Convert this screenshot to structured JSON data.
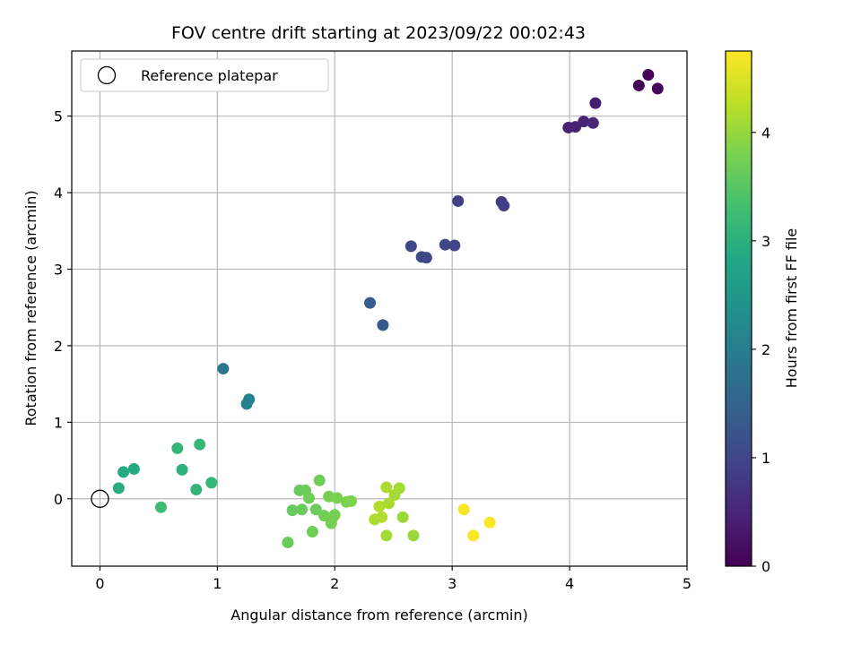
{
  "chart_data": {
    "type": "scatter",
    "title": "FOV centre drift starting at 2023/09/22 00:02:43",
    "xlabel": "Angular distance from reference (arcmin)",
    "ylabel": "Rotation from reference (arcmin)",
    "xlim": [
      -0.24,
      5.0
    ],
    "ylim": [
      -0.88,
      5.85
    ],
    "xticks": [
      0,
      1,
      2,
      3,
      4,
      5
    ],
    "yticks": [
      0,
      1,
      2,
      3,
      4,
      5
    ],
    "grid": true,
    "legend_position": "top-left",
    "legend": [
      "Reference platepar"
    ],
    "reference_point": {
      "x": 0,
      "y": 0
    },
    "colorbar": {
      "label": "Hours from first FF file",
      "colormap": "viridis",
      "range": [
        0,
        4.75
      ],
      "ticks": [
        0,
        1,
        2,
        3,
        4
      ]
    },
    "points": [
      {
        "x": 4.59,
        "y": 5.4,
        "c": 0.02
      },
      {
        "x": 4.67,
        "y": 5.54,
        "c": 0.05
      },
      {
        "x": 4.75,
        "y": 5.36,
        "c": 0.08
      },
      {
        "x": 4.22,
        "y": 5.17,
        "c": 0.4
      },
      {
        "x": 3.99,
        "y": 4.85,
        "c": 0.45
      },
      {
        "x": 4.05,
        "y": 4.86,
        "c": 0.48
      },
      {
        "x": 4.12,
        "y": 4.93,
        "c": 0.5
      },
      {
        "x": 4.2,
        "y": 4.91,
        "c": 0.52
      },
      {
        "x": 3.05,
        "y": 3.89,
        "c": 0.88
      },
      {
        "x": 3.42,
        "y": 3.88,
        "c": 0.85
      },
      {
        "x": 3.44,
        "y": 3.83,
        "c": 0.87
      },
      {
        "x": 2.65,
        "y": 3.3,
        "c": 1.05
      },
      {
        "x": 2.74,
        "y": 3.16,
        "c": 1.05
      },
      {
        "x": 2.78,
        "y": 3.15,
        "c": 1.03
      },
      {
        "x": 2.94,
        "y": 3.32,
        "c": 1.0
      },
      {
        "x": 3.02,
        "y": 3.31,
        "c": 1.0
      },
      {
        "x": 2.3,
        "y": 2.56,
        "c": 1.4
      },
      {
        "x": 2.41,
        "y": 2.27,
        "c": 1.33
      },
      {
        "x": 1.05,
        "y": 1.7,
        "c": 1.85
      },
      {
        "x": 1.25,
        "y": 1.24,
        "c": 2.05
      },
      {
        "x": 1.27,
        "y": 1.3,
        "c": 2.1
      },
      {
        "x": 0.16,
        "y": 0.14,
        "c": 2.95
      },
      {
        "x": 0.2,
        "y": 0.35,
        "c": 2.9
      },
      {
        "x": 0.29,
        "y": 0.39,
        "c": 2.9
      },
      {
        "x": 0.52,
        "y": -0.11,
        "c": 3.25
      },
      {
        "x": 0.66,
        "y": 0.66,
        "c": 3.1
      },
      {
        "x": 0.7,
        "y": 0.38,
        "c": 3.05
      },
      {
        "x": 0.82,
        "y": 0.12,
        "c": 3.1
      },
      {
        "x": 0.85,
        "y": 0.71,
        "c": 3.15
      },
      {
        "x": 0.95,
        "y": 0.21,
        "c": 3.15
      },
      {
        "x": 1.6,
        "y": -0.57,
        "c": 3.65
      },
      {
        "x": 1.64,
        "y": -0.15,
        "c": 3.62
      },
      {
        "x": 1.7,
        "y": 0.11,
        "c": 3.62
      },
      {
        "x": 1.72,
        "y": -0.14,
        "c": 3.65
      },
      {
        "x": 1.75,
        "y": 0.11,
        "c": 3.65
      },
      {
        "x": 1.78,
        "y": 0.01,
        "c": 3.7
      },
      {
        "x": 1.81,
        "y": -0.43,
        "c": 3.7
      },
      {
        "x": 1.84,
        "y": -0.14,
        "c": 3.68
      },
      {
        "x": 1.87,
        "y": 0.24,
        "c": 3.7
      },
      {
        "x": 1.91,
        "y": -0.22,
        "c": 3.72
      },
      {
        "x": 1.95,
        "y": 0.03,
        "c": 3.75
      },
      {
        "x": 1.97,
        "y": -0.32,
        "c": 3.75
      },
      {
        "x": 1.98,
        "y": -0.25,
        "c": 3.75
      },
      {
        "x": 2.0,
        "y": -0.21,
        "c": 3.78
      },
      {
        "x": 2.02,
        "y": 0.01,
        "c": 3.8
      },
      {
        "x": 2.1,
        "y": -0.04,
        "c": 3.8
      },
      {
        "x": 2.14,
        "y": -0.03,
        "c": 3.82
      },
      {
        "x": 2.34,
        "y": -0.27,
        "c": 4.15
      },
      {
        "x": 2.38,
        "y": -0.1,
        "c": 4.2
      },
      {
        "x": 2.4,
        "y": -0.24,
        "c": 4.18
      },
      {
        "x": 2.44,
        "y": 0.15,
        "c": 4.15
      },
      {
        "x": 2.44,
        "y": -0.48,
        "c": 4.1
      },
      {
        "x": 2.46,
        "y": -0.06,
        "c": 4.15
      },
      {
        "x": 2.51,
        "y": 0.05,
        "c": 4.1
      },
      {
        "x": 2.55,
        "y": 0.14,
        "c": 4.1
      },
      {
        "x": 2.58,
        "y": -0.24,
        "c": 4.05
      },
      {
        "x": 2.67,
        "y": -0.48,
        "c": 4.05
      },
      {
        "x": 3.1,
        "y": -0.14,
        "c": 4.7
      },
      {
        "x": 3.18,
        "y": -0.48,
        "c": 4.72
      },
      {
        "x": 3.32,
        "y": -0.31,
        "c": 4.73
      }
    ]
  }
}
